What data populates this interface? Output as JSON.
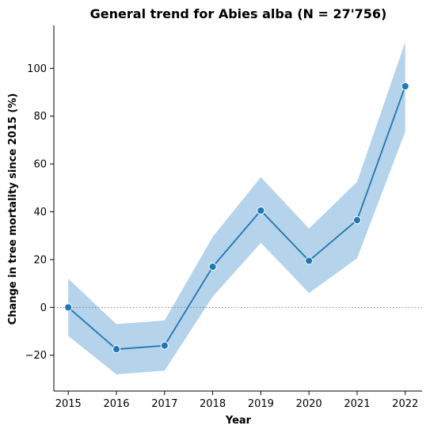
{
  "chart_data": {
    "type": "line",
    "title": "General trend for Abies alba  (N = 27'756)",
    "xlabel": "Year",
    "ylabel": "Change in tree mortality since 2015 (%)",
    "x": [
      2015,
      2016,
      2017,
      2018,
      2019,
      2020,
      2021,
      2022
    ],
    "xticks": [
      "2015",
      "2016",
      "2017",
      "2018",
      "2019",
      "2020",
      "2021",
      "2022"
    ],
    "yticks": [
      -20,
      0,
      20,
      40,
      60,
      80,
      100
    ],
    "ylim": [
      -35,
      118
    ],
    "xlim": [
      2014.7,
      2022.35
    ],
    "grid": false,
    "reference_line": {
      "y": 0,
      "style": "dotted",
      "color": "#808080"
    },
    "series": [
      {
        "values": [
          0,
          -17.5,
          -16,
          17,
          40.5,
          19.5,
          36.5,
          92.5
        ],
        "ci_lower": [
          -12,
          -28,
          -26.5,
          4.5,
          27,
          6,
          20.5,
          73.5
        ],
        "ci_upper": [
          12,
          -7,
          -5.5,
          29.5,
          54.5,
          33,
          52.5,
          111
        ],
        "color": "#1f77b4",
        "band_color": "#b5d3ea"
      }
    ]
  }
}
